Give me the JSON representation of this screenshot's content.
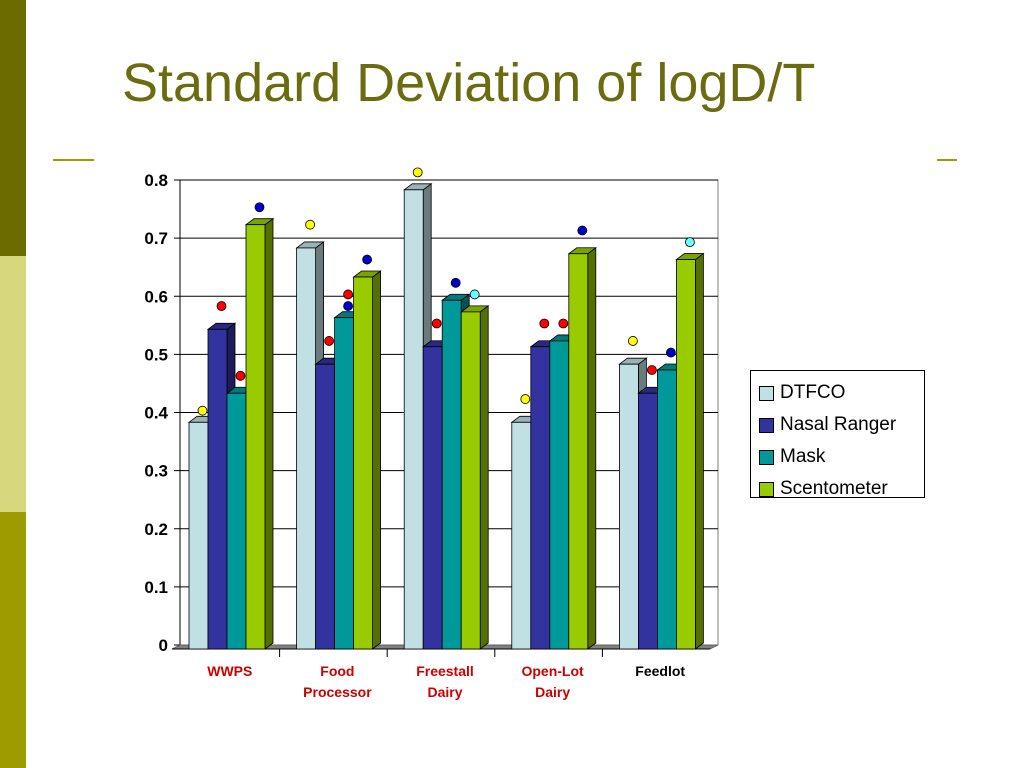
{
  "slide": {
    "title": "Standard Deviation of logD/T",
    "title_color": "#6b6b10",
    "accent_colors": [
      "#6b6b00",
      "#d7d77e",
      "#9c9c00"
    ]
  },
  "chart_data": {
    "type": "bar",
    "title": "",
    "xlabel": "",
    "ylabel": "",
    "ylim": [
      0,
      0.8
    ],
    "yticks": [
      "0",
      "0.1",
      "0.2",
      "0.3",
      "0.4",
      "0.5",
      "0.6",
      "0.7",
      "0.8"
    ],
    "grid": true,
    "legend_position": "right",
    "categories": [
      "WWPS",
      "Food\nProcessor",
      "Freestall\nDairy",
      "Open-Lot\nDairy",
      "Feedlot"
    ],
    "category_colors": [
      "#cc0000",
      "#cc0000",
      "#cc0000",
      "#cc0000",
      "#000000"
    ],
    "series": [
      {
        "name": "DTFCO",
        "color": "#c0e0e4",
        "values": [
          0.39,
          0.69,
          0.79,
          0.39,
          0.49
        ]
      },
      {
        "name": "Nasal Ranger",
        "color": "#3333a0",
        "values": [
          0.55,
          0.49,
          0.52,
          0.52,
          0.44
        ]
      },
      {
        "name": "Mask",
        "color": "#009999",
        "values": [
          0.44,
          0.57,
          0.6,
          0.53,
          0.48
        ]
      },
      {
        "name": "Scentometer",
        "color": "#99cc00",
        "values": [
          0.73,
          0.64,
          0.58,
          0.68,
          0.67
        ]
      }
    ],
    "markers": [
      {
        "category": 0,
        "series": 0,
        "y": 0.41,
        "color": "#ffff00"
      },
      {
        "category": 0,
        "series": 1,
        "y": 0.59,
        "color": "#ff0000"
      },
      {
        "category": 0,
        "series": 2,
        "y": 0.47,
        "color": "#ff0000"
      },
      {
        "category": 0,
        "series": 3,
        "y": 0.76,
        "color": "#0000cc"
      },
      {
        "category": 1,
        "series": 0,
        "y": 0.73,
        "color": "#ffff00"
      },
      {
        "category": 1,
        "series": 1,
        "y": 0.53,
        "color": "#ff0000"
      },
      {
        "category": 1,
        "series": 2,
        "y": 0.59,
        "color": "#0000cc"
      },
      {
        "category": 1,
        "series": 2,
        "y": 0.61,
        "color": "#ff0000"
      },
      {
        "category": 1,
        "series": 3,
        "y": 0.67,
        "color": "#0000cc"
      },
      {
        "category": 2,
        "series": 0,
        "y": 0.82,
        "color": "#ffff00"
      },
      {
        "category": 2,
        "series": 1,
        "y": 0.56,
        "color": "#ff0000"
      },
      {
        "category": 2,
        "series": 2,
        "y": 0.63,
        "color": "#0000cc"
      },
      {
        "category": 2,
        "series": 3,
        "y": 0.61,
        "color": "#66ffff"
      },
      {
        "category": 3,
        "series": 0,
        "y": 0.43,
        "color": "#ffff00"
      },
      {
        "category": 3,
        "series": 1,
        "y": 0.56,
        "color": "#ff0000"
      },
      {
        "category": 3,
        "series": 2,
        "y": 0.56,
        "color": "#ff0000"
      },
      {
        "category": 3,
        "series": 3,
        "y": 0.72,
        "color": "#0000cc"
      },
      {
        "category": 4,
        "series": 0,
        "y": 0.53,
        "color": "#ffff00"
      },
      {
        "category": 4,
        "series": 1,
        "y": 0.48,
        "color": "#ff0000"
      },
      {
        "category": 4,
        "series": 2,
        "y": 0.51,
        "color": "#0000cc"
      },
      {
        "category": 4,
        "series": 3,
        "y": 0.7,
        "color": "#66ffff"
      }
    ]
  }
}
